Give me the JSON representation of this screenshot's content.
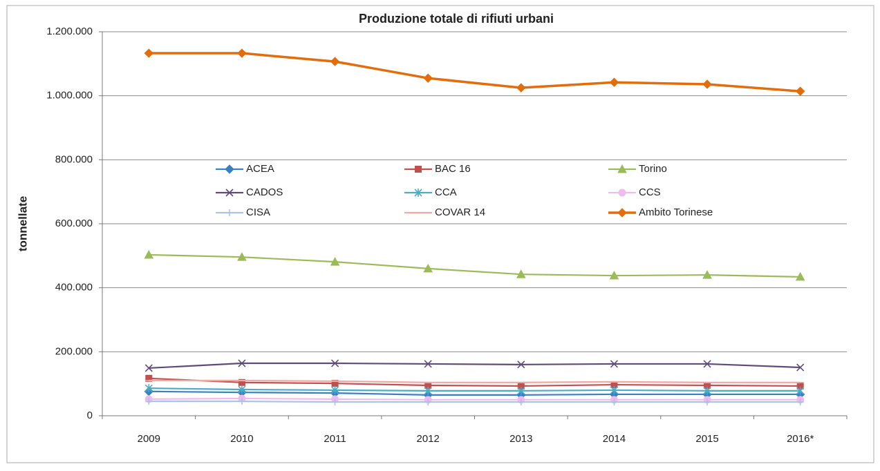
{
  "chart_data": {
    "type": "line",
    "title": "Produzione totale di rifiuti urbani",
    "y_label": "tonnellate",
    "categories": [
      "2009",
      "2010",
      "2011",
      "2012",
      "2013",
      "2014",
      "2015",
      "2016*"
    ],
    "ylim": [
      0,
      1200000
    ],
    "yticks": [
      0,
      {
        "value": 200000,
        "label": "200.000"
      },
      {
        "value": 400000,
        "label": "400.000"
      },
      {
        "value": 600000,
        "label": "600.000"
      },
      {
        "value": 800000,
        "label": "800.000"
      },
      {
        "value": 1000000,
        "label": "1.000.000"
      },
      {
        "value": 1200000,
        "label": "1.200.000"
      }
    ],
    "grid": true,
    "legend": "center",
    "series": [
      {
        "name": "ACEA",
        "color": "#3a7fc1",
        "marker": "diamond",
        "values": [
          76000,
          73000,
          71000,
          65000,
          65000,
          67000,
          67000,
          67000
        ]
      },
      {
        "name": "BAC 16",
        "color": "#c0504d",
        "marker": "square",
        "values": [
          117000,
          104000,
          101000,
          95000,
          93000,
          97000,
          95000,
          93000
        ]
      },
      {
        "name": "Torino",
        "color": "#9bbb59",
        "marker": "triangle",
        "values": [
          503000,
          496000,
          481000,
          460000,
          442000,
          438000,
          440000,
          434000
        ]
      },
      {
        "name": "CADOS",
        "color": "#604a7b",
        "marker": "x",
        "values": [
          149000,
          164000,
          164000,
          162000,
          160000,
          162000,
          162000,
          151000
        ]
      },
      {
        "name": "CCA",
        "color": "#4bacc6",
        "marker": "asterisk",
        "values": [
          86000,
          82000,
          80000,
          78000,
          78000,
          80000,
          78000,
          78000
        ]
      },
      {
        "name": "CCS",
        "color": "#eebbee",
        "marker": "circle",
        "values": [
          52000,
          54000,
          52000,
          50000,
          50000,
          50000,
          50000,
          50000
        ]
      },
      {
        "name": "CISA",
        "color": "#aac4e6",
        "marker": "plus",
        "values": [
          45000,
          45000,
          43000,
          43000,
          43000,
          43000,
          43000,
          43000
        ]
      },
      {
        "name": "COVAR 14",
        "color": "#f0a8a0",
        "marker": "dash",
        "values": [
          110000,
          110000,
          108000,
          104000,
          104000,
          106000,
          104000,
          104000
        ]
      },
      {
        "name": "Ambito Torinese",
        "color": "#e46c0a",
        "marker": "diamond",
        "values": [
          1133000,
          1133000,
          1107000,
          1055000,
          1025000,
          1042000,
          1036000,
          1014000
        ]
      }
    ]
  }
}
